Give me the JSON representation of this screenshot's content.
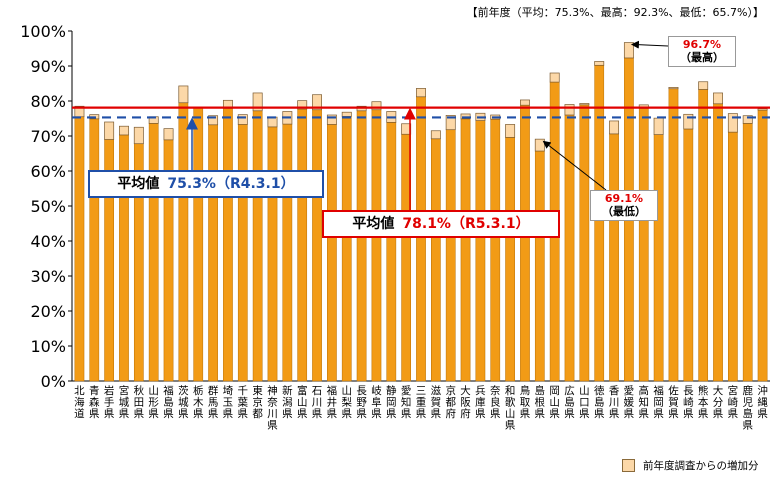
{
  "note": "【前年度（平均：75.3%、最高：92.3%、最低：65.7%）】",
  "legend": {
    "increase_label": "前年度調査からの増加分"
  },
  "callouts": {
    "avg_prev_label": "平均値",
    "avg_prev_value": "75.3%（R4.3.1）",
    "avg_curr_label": "平均値",
    "avg_curr_value": "78.1%（R5.3.1）",
    "max_value": "96.7%",
    "max_label": "（最高）",
    "min_value": "69.1%",
    "min_label": "（最低）"
  },
  "colors": {
    "base": "#f29b16",
    "increase": "#fcd8a8",
    "avg_curr_line": "#e00000",
    "avg_prev_line": "#1f4fa8"
  },
  "chart_data": {
    "type": "bar",
    "stacked": true,
    "ylim": [
      0,
      100
    ],
    "yticks": [
      "0%",
      "10%",
      "20%",
      "30%",
      "40%",
      "50%",
      "60%",
      "70%",
      "80%",
      "90%",
      "100%"
    ],
    "categories": [
      "北海道",
      "青森県",
      "岩手県",
      "宮城県",
      "秋田県",
      "山形県",
      "福島県",
      "茨城県",
      "栃木県",
      "群馬県",
      "埼玉県",
      "千葉県",
      "東京都",
      "神奈川県",
      "新潟県",
      "富山県",
      "石川県",
      "福井県",
      "山梨県",
      "長野県",
      "岐阜県",
      "静岡県",
      "愛知県",
      "三重県",
      "滋賀県",
      "京都府",
      "大阪府",
      "兵庫県",
      "奈良県",
      "和歌山県",
      "鳥取県",
      "島根県",
      "岡山県",
      "広島県",
      "山口県",
      "徳島県",
      "香川県",
      "愛媛県",
      "高知県",
      "福岡県",
      "佐賀県",
      "長崎県",
      "熊本県",
      "大分県",
      "宮崎県",
      "鹿児島県",
      "沖縄県"
    ],
    "previous_year": [
      75.5,
      74.9,
      69.0,
      70.3,
      67.8,
      73.6,
      68.9,
      79.5,
      78.0,
      73.2,
      77.9,
      73.3,
      77.2,
      72.6,
      73.4,
      77.7,
      77.5,
      73.3,
      75.6,
      77.2,
      77.5,
      73.9,
      70.5,
      81.2,
      69.2,
      71.8,
      74.9,
      74.4,
      74.8,
      69.6,
      78.8,
      65.7,
      85.4,
      76.0,
      78.9,
      90.2,
      70.6,
      92.3,
      77.9,
      70.4,
      83.5,
      72.0,
      83.3,
      79.2,
      71.1,
      73.6,
      77.4
    ],
    "current_year": [
      78.5,
      76.1,
      74.0,
      72.8,
      72.5,
      75.5,
      72.1,
      84.3,
      78.2,
      75.8,
      80.2,
      76.1,
      82.3,
      75.4,
      77.0,
      80.1,
      81.8,
      76.0,
      76.8,
      78.5,
      79.8,
      77.0,
      73.5,
      83.6,
      71.5,
      75.9,
      76.3,
      76.5,
      76.0,
      73.3,
      80.3,
      69.1,
      88.0,
      79.0,
      79.3,
      91.3,
      74.3,
      96.7,
      78.9,
      75.1,
      83.9,
      76.2,
      85.5,
      82.3,
      76.4,
      75.8,
      77.8
    ],
    "series": [
      {
        "name": "前年度調査からの増加分"
      }
    ],
    "average_previous": 75.3,
    "average_current": 78.1
  }
}
